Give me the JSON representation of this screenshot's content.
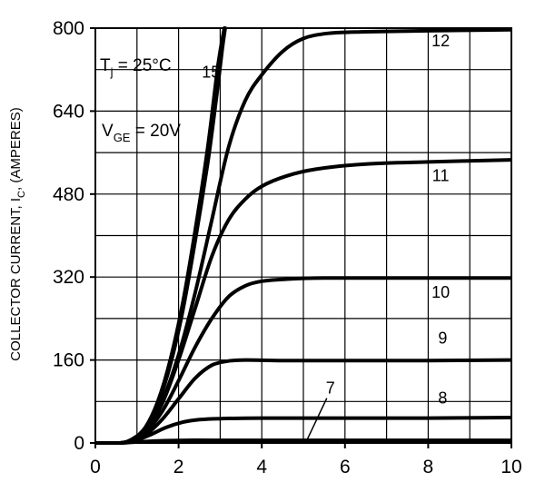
{
  "chart_data": {
    "type": "line",
    "xlim": [
      0,
      10
    ],
    "ylim": [
      0,
      800
    ],
    "x_ticks": [
      "0",
      "2",
      "4",
      "6",
      "8",
      "10"
    ],
    "y_ticks": [
      "0",
      "160",
      "320",
      "480",
      "640",
      "800"
    ],
    "ylabel": "COLLECTOR CURRENT, I",
    "ylabel_sub": "C",
    "ylabel_suffix": ", (AMPERES)",
    "grid": true,
    "annotations": {
      "tj_main": "T",
      "tj_sub": "j",
      "tj_rest": " = 25°C",
      "vge_main": "V",
      "vge_sub": "GE",
      "vge_rest": " = 20V"
    },
    "series": [
      {
        "name": "20",
        "points": [
          [
            0,
            0
          ],
          [
            0.6,
            0
          ],
          [
            0.9,
            8
          ],
          [
            1.2,
            30
          ],
          [
            1.5,
            80
          ],
          [
            1.8,
            160
          ],
          [
            2.1,
            270
          ],
          [
            2.4,
            410
          ],
          [
            2.7,
            570
          ],
          [
            2.95,
            730
          ],
          [
            3.1,
            800
          ]
        ]
      },
      {
        "name": "15",
        "label": "15",
        "points": [
          [
            0,
            0
          ],
          [
            0.6,
            0
          ],
          [
            0.9,
            8
          ],
          [
            1.2,
            28
          ],
          [
            1.5,
            75
          ],
          [
            1.8,
            150
          ],
          [
            2.1,
            255
          ],
          [
            2.4,
            390
          ],
          [
            2.7,
            540
          ],
          [
            2.9,
            660
          ],
          [
            3.05,
            760
          ],
          [
            3.12,
            800
          ]
        ]
      },
      {
        "name": "12",
        "label": "12",
        "points": [
          [
            0,
            0
          ],
          [
            0.6,
            0
          ],
          [
            0.9,
            7
          ],
          [
            1.2,
            25
          ],
          [
            1.6,
            80
          ],
          [
            2.0,
            170
          ],
          [
            2.4,
            290
          ],
          [
            2.8,
            430
          ],
          [
            3.2,
            570
          ],
          [
            3.6,
            660
          ],
          [
            4.0,
            710
          ],
          [
            4.5,
            755
          ],
          [
            5.0,
            780
          ],
          [
            5.6,
            790
          ],
          [
            6.5,
            793
          ],
          [
            8,
            795
          ],
          [
            10,
            797
          ]
        ]
      },
      {
        "name": "11",
        "label": "11",
        "points": [
          [
            0,
            0
          ],
          [
            0.6,
            0
          ],
          [
            0.9,
            7
          ],
          [
            1.2,
            24
          ],
          [
            1.6,
            75
          ],
          [
            2.0,
            160
          ],
          [
            2.4,
            260
          ],
          [
            2.8,
            360
          ],
          [
            3.2,
            430
          ],
          [
            3.6,
            470
          ],
          [
            4.0,
            495
          ],
          [
            4.6,
            515
          ],
          [
            5.3,
            528
          ],
          [
            6.5,
            538
          ],
          [
            8,
            542
          ],
          [
            10,
            546
          ]
        ]
      },
      {
        "name": "10",
        "label": "10",
        "points": [
          [
            0,
            0
          ],
          [
            0.6,
            0
          ],
          [
            0.9,
            6
          ],
          [
            1.2,
            20
          ],
          [
            1.6,
            60
          ],
          [
            2.0,
            120
          ],
          [
            2.4,
            185
          ],
          [
            2.8,
            240
          ],
          [
            3.2,
            282
          ],
          [
            3.6,
            303
          ],
          [
            4.0,
            312
          ],
          [
            4.6,
            316
          ],
          [
            5.5,
            318
          ],
          [
            7,
            318
          ],
          [
            10,
            318
          ]
        ]
      },
      {
        "name": "9",
        "label": "9",
        "points": [
          [
            0,
            0
          ],
          [
            0.6,
            0
          ],
          [
            0.9,
            5
          ],
          [
            1.2,
            15
          ],
          [
            1.6,
            45
          ],
          [
            2.0,
            85
          ],
          [
            2.4,
            125
          ],
          [
            2.8,
            150
          ],
          [
            3.2,
            158
          ],
          [
            3.6,
            160
          ],
          [
            4.5,
            159
          ],
          [
            6,
            159
          ],
          [
            8,
            159
          ],
          [
            10,
            160
          ]
        ]
      },
      {
        "name": "8",
        "label": "8",
        "points": [
          [
            0,
            0
          ],
          [
            0.6,
            0
          ],
          [
            0.9,
            3
          ],
          [
            1.3,
            15
          ],
          [
            1.7,
            30
          ],
          [
            2.1,
            40
          ],
          [
            2.5,
            45
          ],
          [
            3.0,
            47
          ],
          [
            4.0,
            48
          ],
          [
            6,
            48
          ],
          [
            8,
            48
          ],
          [
            10,
            49
          ]
        ]
      },
      {
        "name": "7",
        "label": "7",
        "points": [
          [
            0,
            0
          ],
          [
            0.6,
            0
          ],
          [
            1.0,
            2
          ],
          [
            1.5,
            4
          ],
          [
            2.2,
            5
          ],
          [
            3,
            5
          ],
          [
            5,
            5
          ],
          [
            7,
            5
          ],
          [
            10,
            5
          ]
        ]
      }
    ],
    "labels": [
      {
        "text": "15",
        "x": 2.78,
        "y": 705
      },
      {
        "text": "12",
        "x": 8.3,
        "y": 765
      },
      {
        "text": "11",
        "x": 8.3,
        "y": 505
      },
      {
        "text": "10",
        "x": 8.3,
        "y": 280
      },
      {
        "text": "9",
        "x": 8.35,
        "y": 192
      },
      {
        "text": "8",
        "x": 8.35,
        "y": 76
      },
      {
        "text": "7",
        "x": 5.65,
        "y": 95
      }
    ]
  }
}
